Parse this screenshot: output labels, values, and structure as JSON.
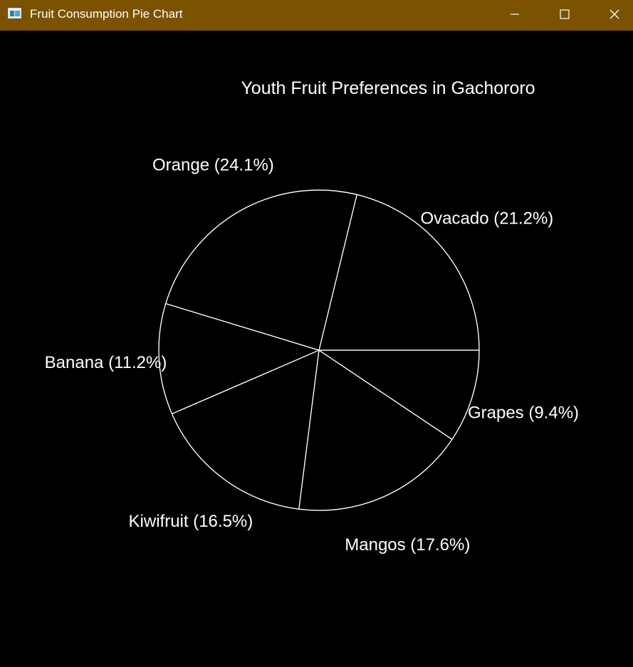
{
  "window": {
    "title": "Fruit Consumption Pie Chart",
    "titlebar_color": "#7a5200",
    "icons": {
      "app": "app-window-icon",
      "minimize": "minimize-icon",
      "maximize": "maximize-icon",
      "close": "close-icon"
    }
  },
  "chart_data": {
    "type": "pie",
    "title": "Youth Fruit Preferences in Gachororo",
    "background": "#000000",
    "line_color": "#ffffff",
    "fill": "none",
    "start_angle_deg": 0,
    "direction": "counterclockwise",
    "slices": [
      {
        "label": "Ovacado",
        "value": 21.2,
        "display": "Ovacado (21.2%)"
      },
      {
        "label": "Orange",
        "value": 24.1,
        "display": "Orange (24.1%)"
      },
      {
        "label": "Banana",
        "value": 11.2,
        "display": "Banana (11.2%)"
      },
      {
        "label": "Kiwifruit",
        "value": 16.5,
        "display": "Kiwifruit (16.5%)"
      },
      {
        "label": "Mangos",
        "value": 17.6,
        "display": "Mangos (17.6%)"
      },
      {
        "label": "Grapes",
        "value": 9.4,
        "display": "Grapes (9.4%)"
      }
    ]
  }
}
